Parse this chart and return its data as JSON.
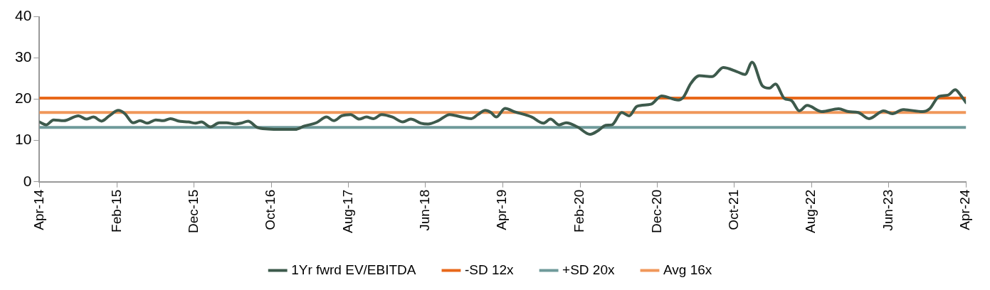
{
  "chart_data": {
    "type": "line",
    "xlim": [
      "2014-04-01",
      "2024-04-01"
    ],
    "xticks": [
      {
        "value": "2014-04-01",
        "label": "Apr-14"
      },
      {
        "value": "2015-02-01",
        "label": "Feb-15"
      },
      {
        "value": "2015-12-01",
        "label": "Dec-15"
      },
      {
        "value": "2016-10-01",
        "label": "Oct-16"
      },
      {
        "value": "2017-08-01",
        "label": "Aug-17"
      },
      {
        "value": "2018-06-01",
        "label": "Jun-18"
      },
      {
        "value": "2019-04-01",
        "label": "Apr-19"
      },
      {
        "value": "2020-02-01",
        "label": "Feb-20"
      },
      {
        "value": "2020-12-01",
        "label": "Dec-20"
      },
      {
        "value": "2021-10-01",
        "label": "Oct-21"
      },
      {
        "value": "2022-08-01",
        "label": "Aug-22"
      },
      {
        "value": "2023-06-01",
        "label": "Jun-23"
      },
      {
        "value": "2024-04-01",
        "label": "Apr-24"
      }
    ],
    "ylim": [
      0,
      40
    ],
    "yticks": [
      0,
      10,
      20,
      30,
      40
    ],
    "grid": false,
    "legend": "bottom",
    "marker": "none",
    "line_style": "solid",
    "series": [
      {
        "name": "1Yr fwrd EV/EBITDA",
        "color": "#3d5a4c",
        "x": [
          "2014-04-01",
          "2014-04-28",
          "2014-05-27",
          "2014-07-06",
          "2014-09-02",
          "2014-10-03",
          "2014-10-31",
          "2014-12-02",
          "2015-01-02",
          "2015-02-06",
          "2015-03-04",
          "2015-04-05",
          "2015-05-03",
          "2015-05-31",
          "2015-07-04",
          "2015-08-02",
          "2015-08-31",
          "2015-10-04",
          "2015-11-10",
          "2015-12-08",
          "2015-12-31",
          "2016-02-04",
          "2016-03-10",
          "2016-04-08",
          "2016-05-12",
          "2016-06-04",
          "2016-07-02",
          "2016-08-06",
          "2016-09-18",
          "2016-11-14",
          "2017-01-04",
          "2017-02-08",
          "2017-03-28",
          "2017-05-07",
          "2017-06-05",
          "2017-07-06",
          "2017-08-10",
          "2017-09-13",
          "2017-10-11",
          "2017-11-09",
          "2017-12-10",
          "2018-01-22",
          "2018-03-04",
          "2018-04-04",
          "2018-05-14",
          "2018-06-11",
          "2018-07-21",
          "2018-09-05",
          "2018-10-14",
          "2018-11-29",
          "2018-12-25",
          "2019-01-23",
          "2019-02-14",
          "2019-03-07",
          "2019-04-11",
          "2019-05-17",
          "2019-07-25",
          "2019-09-09",
          "2019-10-07",
          "2019-11-10",
          "2019-12-08",
          "2020-01-21",
          "2020-03-11",
          "2020-04-14",
          "2020-05-12",
          "2020-06-05",
          "2020-07-14",
          "2020-08-12",
          "2020-09-12",
          "2020-11-06",
          "2020-12-18",
          "2021-02-22",
          "2021-03-14",
          "2021-04-12",
          "2021-05-16",
          "2021-07-06",
          "2021-08-18",
          "2021-10-11",
          "2021-11-12",
          "2021-12-10",
          "2022-01-19",
          "2022-02-16",
          "2022-03-12",
          "2022-04-16",
          "2022-05-14",
          "2022-06-14",
          "2022-07-15",
          "2022-09-11",
          "2022-11-16",
          "2022-12-25",
          "2023-02-01",
          "2023-03-16",
          "2023-05-13",
          "2023-06-16",
          "2023-07-28",
          "2023-10-13",
          "2023-11-10",
          "2023-12-17",
          "2024-01-21",
          "2024-02-19",
          "2024-03-11",
          "2024-04-01"
        ],
        "values": [
          14.5,
          13.8,
          15.0,
          14.8,
          16.0,
          15.2,
          15.7,
          14.7,
          16,
          17.3,
          16.5,
          14.3,
          14.8,
          14.2,
          15,
          14.8,
          15.3,
          14.7,
          14.5,
          14.2,
          14.5,
          13.3,
          14.3,
          14.3,
          14,
          14.2,
          14.7,
          13.2,
          12.8,
          12.7,
          12.7,
          13.5,
          14.3,
          15.7,
          14.8,
          16,
          16.3,
          15.2,
          15.7,
          15.3,
          16.3,
          15.7,
          14.5,
          15.2,
          14.2,
          14,
          14.8,
          16.3,
          15.8,
          15.3,
          16.3,
          17.3,
          16.8,
          15.7,
          17.8,
          17,
          15.7,
          14.2,
          15.2,
          13.8,
          14.3,
          13.3,
          11.5,
          12.5,
          13.7,
          13.8,
          16.8,
          16,
          18.3,
          18.8,
          20.8,
          19.8,
          20.5,
          23.8,
          25.7,
          25.5,
          27.7,
          26.7,
          26,
          29,
          23.3,
          22.7,
          23.7,
          20.2,
          19.7,
          17.2,
          18.5,
          17,
          17.7,
          17,
          16.8,
          15.3,
          17.2,
          16.5,
          17.5,
          17,
          17.7,
          20.7,
          21,
          22.3,
          21,
          19.2
        ]
      },
      {
        "name": "-SD 12x",
        "color": "#e8681a",
        "x": [
          "2014-04-01",
          "2024-04-01"
        ],
        "values": [
          20.3,
          20.3
        ]
      },
      {
        "name": "+SD 20x",
        "color": "#6f9a9a",
        "x": [
          "2014-04-01",
          "2024-04-01"
        ],
        "values": [
          13.2,
          13.2
        ]
      },
      {
        "name": "Avg 16x",
        "color": "#f0975a",
        "x": [
          "2014-04-01",
          "2024-04-01"
        ],
        "values": [
          16.8,
          16.8
        ]
      }
    ]
  }
}
